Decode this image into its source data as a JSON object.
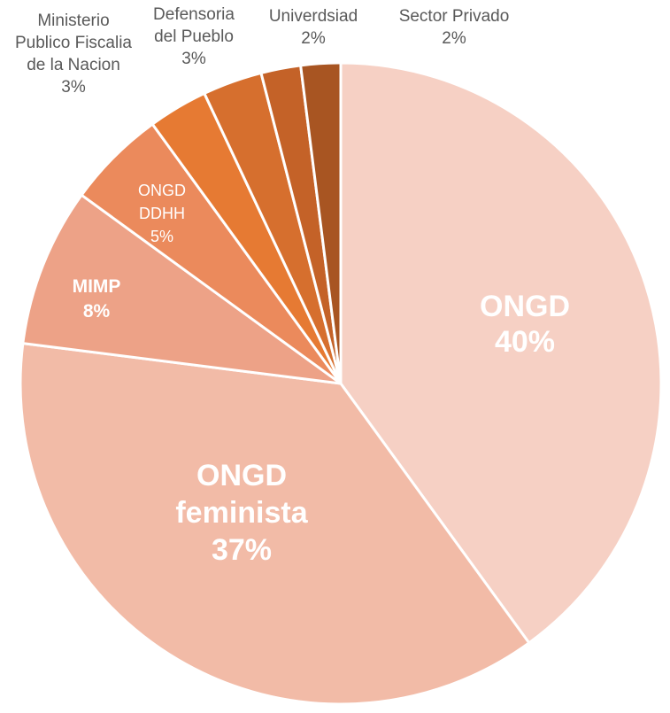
{
  "chart_data": {
    "type": "pie",
    "title": "",
    "start": "top",
    "direction": "clockwise",
    "slices": [
      {
        "label": "ONGD",
        "value": 40,
        "display": "40%",
        "color": "#F6D0C4",
        "label_style": "inside-bold-large",
        "label_lines": [
          "ONGD",
          "40%"
        ]
      },
      {
        "label": "ONGD feminista",
        "value": 37,
        "display": "37%",
        "color": "#F2BBA7",
        "label_style": "inside-bold-large",
        "label_lines": [
          "ONGD",
          "feminista",
          "37%"
        ]
      },
      {
        "label": "MIMP",
        "value": 8,
        "display": "8%",
        "color": "#EDA287",
        "label_style": "inside-bold",
        "label_lines": [
          "MIMP",
          "8%"
        ]
      },
      {
        "label": "ONGD DDHH",
        "value": 5,
        "display": "5%",
        "color": "#EB8A5C",
        "label_style": "inside",
        "label_lines": [
          "ONGD",
          "DDHH",
          "5%"
        ]
      },
      {
        "label": "Ministerio Publico Fiscalia de la Nacion",
        "value": 3,
        "display": "3%",
        "color": "#E67A33",
        "label_style": "outside",
        "label_lines": [
          "Ministerio",
          "Publico Fiscalia",
          "de la Nacion",
          "3%"
        ]
      },
      {
        "label": "Defensoria del Pueblo",
        "value": 3,
        "display": "3%",
        "color": "#D66F2E",
        "label_style": "outside",
        "label_lines": [
          "Defensoria",
          "del Pueblo",
          "3%"
        ]
      },
      {
        "label": "Univerdsiad",
        "value": 2,
        "display": "2%",
        "color": "#C46228",
        "label_style": "outside",
        "label_lines": [
          "Univerdsiad",
          "2%"
        ]
      },
      {
        "label": "Sector Privado",
        "value": 2,
        "display": "2%",
        "color": "#A85522",
        "label_style": "outside",
        "label_lines": [
          "Sector Privado",
          "2%"
        ]
      }
    ],
    "legend": "none"
  }
}
